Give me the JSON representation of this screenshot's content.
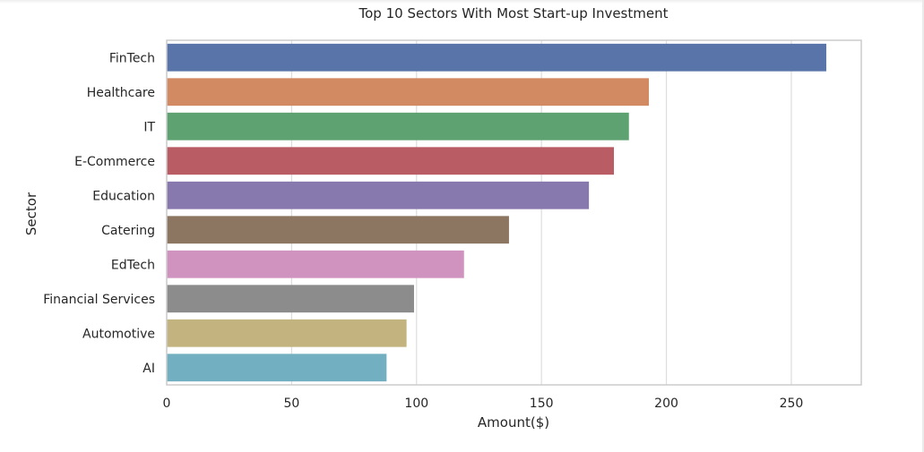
{
  "chart_data": {
    "type": "bar",
    "orientation": "horizontal",
    "title": "Top 10 Sectors With Most Start-up Investment",
    "xlabel": "Amount($)",
    "ylabel": "Sector",
    "categories": [
      "FinTech",
      "Healthcare",
      "IT",
      "E-Commerce",
      "Education",
      "Catering",
      "EdTech",
      "Financial Services",
      "Automotive",
      "AI"
    ],
    "values": [
      264,
      193,
      185,
      179,
      169,
      137,
      119,
      99,
      96,
      88
    ],
    "xlim": [
      0,
      278
    ],
    "xticks": [
      0,
      50,
      100,
      150,
      200,
      250
    ],
    "grid": true,
    "colors": [
      "#5874a8",
      "#d28a63",
      "#5da270",
      "#b95c63",
      "#8778ae",
      "#8c7662",
      "#d093bf",
      "#8c8c8c",
      "#c3b37e",
      "#72afc1"
    ]
  }
}
